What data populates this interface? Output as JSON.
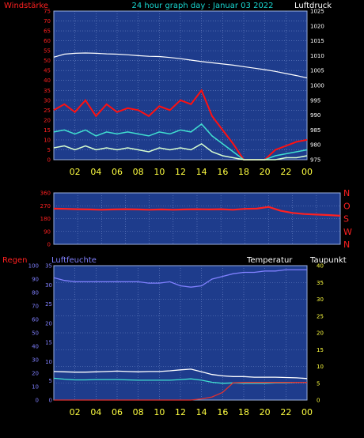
{
  "header": {
    "title": "24 hour graph day : Januar 03 2022",
    "left_label": "Windstärke",
    "right_label": "Luftdruck"
  },
  "colors": {
    "background": "#000000",
    "plot_bg": "#1e3c8c",
    "grid": "#6f88c8",
    "title": "#18d6d0",
    "wind_axis": "#ff2020",
    "wind_gust": "#ff1010",
    "wind_mean": "#40e0d0",
    "wind_min": "#d8ffd0",
    "pressure": "#ffffff",
    "direction": "#ff2020",
    "rain": "#e03030",
    "humidity": "#8080ff",
    "temperature": "#ffffff",
    "dewpoint": "#40e0d0",
    "time_ticks": "#ffff40",
    "bottom_right_axis": "#ffff40"
  },
  "x_ticks": [
    "02",
    "04",
    "06",
    "08",
    "10",
    "12",
    "14",
    "16",
    "18",
    "20",
    "22",
    "00"
  ],
  "chart_data": [
    {
      "type": "line",
      "name": "wind_pressure",
      "left_axis": {
        "label": "Windstärke",
        "ticks": [
          "0",
          "5",
          "10",
          "15",
          "20",
          "25",
          "30",
          "35",
          "40",
          "45",
          "50",
          "55",
          "60",
          "65",
          "70",
          "75"
        ],
        "ylim": [
          0,
          75
        ]
      },
      "right_axis": {
        "label": "Luftdruck",
        "ticks": [
          "975",
          "980",
          "985",
          "990",
          "995",
          "1000",
          "1005",
          "1010",
          "1015",
          "1020",
          "1025"
        ],
        "ylim": [
          975,
          1025
        ]
      },
      "x": [
        0,
        1,
        2,
        3,
        4,
        5,
        6,
        7,
        8,
        9,
        10,
        11,
        12,
        13,
        14,
        15,
        16,
        17,
        18,
        19,
        20,
        21,
        22,
        23,
        24
      ],
      "series": [
        {
          "name": "gust",
          "axis": "left",
          "values": [
            25,
            28,
            24,
            30,
            22,
            28,
            24,
            26,
            25,
            22,
            27,
            25,
            30,
            28,
            35,
            22,
            15,
            8,
            0,
            0,
            0,
            5,
            7,
            9,
            10
          ]
        },
        {
          "name": "mean",
          "axis": "left",
          "values": [
            14,
            15,
            13,
            15,
            12,
            14,
            13,
            14,
            13,
            12,
            14,
            13,
            15,
            14,
            18,
            12,
            8,
            4,
            0,
            0,
            0,
            2,
            3,
            4,
            5
          ]
        },
        {
          "name": "min",
          "axis": "left",
          "values": [
            6,
            7,
            5,
            7,
            5,
            6,
            5,
            6,
            5,
            4,
            6,
            5,
            6,
            5,
            8,
            4,
            2,
            1,
            0,
            0,
            0,
            0,
            1,
            1,
            2
          ]
        },
        {
          "name": "pressure",
          "axis": "right",
          "values": [
            1009.5,
            1010.5,
            1010.8,
            1010.9,
            1010.8,
            1010.6,
            1010.5,
            1010.3,
            1010.0,
            1009.8,
            1009.7,
            1009.4,
            1009.0,
            1008.5,
            1008.0,
            1007.6,
            1007.2,
            1006.8,
            1006.3,
            1005.8,
            1005.3,
            1004.7,
            1004.0,
            1003.3,
            1002.5
          ]
        }
      ]
    },
    {
      "type": "line",
      "name": "wind_direction",
      "left_axis": {
        "ticks": [
          "0",
          "90",
          "180",
          "270",
          "360"
        ],
        "ylim": [
          0,
          360
        ]
      },
      "right_axis": {
        "ticks": [
          "N",
          "W",
          "S",
          "O",
          "N"
        ]
      },
      "x": [
        0,
        1,
        2,
        3,
        4,
        5,
        6,
        7,
        8,
        9,
        10,
        11,
        12,
        13,
        14,
        15,
        16,
        17,
        18,
        19,
        20,
        21,
        22,
        23,
        24
      ],
      "series": [
        {
          "name": "direction",
          "values": [
            250,
            248,
            246,
            244,
            242,
            244,
            246,
            244,
            242,
            244,
            242,
            244,
            246,
            244,
            246,
            242,
            248,
            250,
            262,
            235,
            220,
            212,
            208,
            205,
            200
          ]
        }
      ]
    },
    {
      "type": "line",
      "name": "rain_humidity_temperature",
      "labels": {
        "rain": "Regen",
        "humidity": "Luftfeuchte",
        "temperature": "Temperatur",
        "dewpoint": "Taupunkt"
      },
      "left_axis": {
        "ticks": [
          "0",
          "10",
          "20",
          "30",
          "40",
          "50",
          "60",
          "70",
          "80",
          "90",
          "100"
        ],
        "ylim": [
          0,
          100
        ]
      },
      "inner_axis": {
        "ticks": [
          "0",
          "5",
          "10",
          "15",
          "20",
          "25",
          "30",
          "35"
        ],
        "ylim": [
          0,
          35
        ]
      },
      "right_axis": {
        "ticks": [
          "0",
          "5",
          "10",
          "15",
          "20",
          "25",
          "30",
          "35",
          "40"
        ],
        "ylim": [
          0,
          40
        ]
      },
      "x": [
        0,
        1,
        2,
        3,
        4,
        5,
        6,
        7,
        8,
        9,
        10,
        11,
        12,
        13,
        14,
        15,
        16,
        17,
        18,
        19,
        20,
        21,
        22,
        23,
        24
      ],
      "series": [
        {
          "name": "humidity",
          "values": [
            91,
            89,
            88,
            88,
            88,
            88,
            88,
            88,
            88,
            87,
            87,
            88,
            85,
            84,
            85,
            90,
            92,
            94,
            95,
            95,
            96,
            96,
            97,
            97,
            97
          ]
        },
        {
          "name": "temperature",
          "values": [
            8.5,
            8.4,
            8.3,
            8.3,
            8.4,
            8.5,
            8.6,
            8.5,
            8.4,
            8.5,
            8.5,
            8.7,
            9.0,
            9.2,
            8.4,
            7.6,
            7.2,
            7.0,
            7.0,
            6.8,
            6.8,
            6.8,
            6.7,
            6.6,
            6.4
          ]
        },
        {
          "name": "dewpoint",
          "values": [
            6.5,
            6.2,
            6.0,
            6.0,
            6.1,
            6.1,
            6.1,
            6.0,
            5.9,
            5.9,
            5.9,
            5.9,
            6.1,
            6.3,
            5.9,
            5.3,
            5.0,
            5.1,
            5.0,
            5.0,
            5.0,
            5.1,
            5.1,
            5.2,
            5.2
          ]
        },
        {
          "name": "rain",
          "values": [
            0,
            0,
            0,
            0,
            0,
            0,
            0,
            0,
            0,
            0,
            0,
            0,
            0,
            0,
            0.3,
            0.8,
            2.0,
            4.5,
            4.6,
            4.6,
            4.6,
            4.6,
            4.6,
            4.6,
            4.6
          ]
        }
      ]
    }
  ]
}
